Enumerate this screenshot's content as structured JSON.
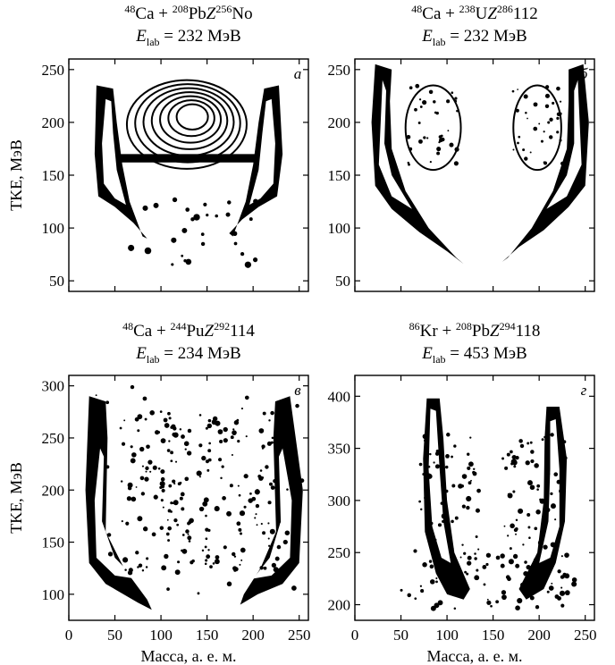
{
  "figure": {
    "ylabel": "TKE, МэВ",
    "xlabel": "Масса, а. е. м."
  },
  "chart_data": [
    {
      "type": "heatmap",
      "panel_label": "а",
      "title_parts": [
        {
          "t": "48",
          "s": "sup"
        },
        {
          "t": "Ca + ",
          "s": ""
        },
        {
          "t": "208",
          "s": "sup"
        },
        {
          "t": "Pb",
          "s": ""
        },
        {
          "t": "Z",
          "s": "it"
        },
        {
          "t": "256",
          "s": "sup"
        },
        {
          "t": "No",
          "s": ""
        }
      ],
      "energy": "232 МэВ",
      "ylim": [
        40,
        260
      ],
      "yticks": [
        50,
        100,
        150,
        200,
        250
      ],
      "xlim": [
        0,
        260
      ],
      "xticks": [
        0,
        50,
        100,
        150,
        200,
        250
      ],
      "show_xticklabels": false,
      "show_ylabel": true,
      "show_xlabel": false,
      "regions": [
        {
          "kind": "band",
          "x_range": [
            30,
            85
          ],
          "tke_range": [
            100,
            235
          ]
        },
        {
          "kind": "band",
          "x_range": [
            175,
            230
          ],
          "tke_range": [
            100,
            235
          ]
        },
        {
          "kind": "contour",
          "x_range": [
            70,
            195
          ],
          "tke_range": [
            160,
            240
          ]
        }
      ]
    },
    {
      "type": "heatmap",
      "panel_label": "б",
      "title_parts": [
        {
          "t": "48",
          "s": "sup"
        },
        {
          "t": "Ca + ",
          "s": ""
        },
        {
          "t": "238",
          "s": "sup"
        },
        {
          "t": "U",
          "s": ""
        },
        {
          "t": "Z",
          "s": "it"
        },
        {
          "t": "286",
          "s": "sup"
        },
        {
          "t": "112",
          "s": ""
        }
      ],
      "energy": "232 МэВ",
      "ylim": [
        40,
        260
      ],
      "yticks": [
        50,
        100,
        150,
        200,
        250
      ],
      "xlim": [
        0,
        260
      ],
      "xticks": [
        0,
        50,
        100,
        150,
        200,
        250
      ],
      "show_xticklabels": false,
      "show_ylabel": false,
      "show_xlabel": false,
      "regions": [
        {
          "kind": "band",
          "x_range": [
            25,
            110
          ],
          "tke_range": [
            65,
            250
          ]
        },
        {
          "kind": "band",
          "x_range": [
            165,
            250
          ],
          "tke_range": [
            65,
            250
          ]
        },
        {
          "kind": "contour",
          "x_range": [
            55,
            120
          ],
          "tke_range": [
            150,
            235
          ]
        },
        {
          "kind": "contour",
          "x_range": [
            170,
            225
          ],
          "tke_range": [
            150,
            235
          ]
        }
      ]
    },
    {
      "type": "heatmap",
      "panel_label": "в",
      "title_parts": [
        {
          "t": "48",
          "s": "sup"
        },
        {
          "t": "Ca + ",
          "s": ""
        },
        {
          "t": "244",
          "s": "sup"
        },
        {
          "t": "Pu",
          "s": ""
        },
        {
          "t": "Z",
          "s": "it"
        },
        {
          "t": "292",
          "s": "sup"
        },
        {
          "t": "114",
          "s": ""
        }
      ],
      "energy": "234 МэВ",
      "ylim": [
        75,
        310
      ],
      "yticks": [
        100,
        150,
        200,
        250,
        300
      ],
      "xlim": [
        0,
        260
      ],
      "xticks": [
        0,
        50,
        100,
        150,
        200,
        250
      ],
      "show_xticklabels": true,
      "show_ylabel": true,
      "show_xlabel": true,
      "regions": [
        {
          "kind": "band",
          "x_range": [
            20,
            90
          ],
          "tke_range": [
            85,
            290
          ]
        },
        {
          "kind": "band",
          "x_range": [
            205,
            255
          ],
          "tke_range": [
            85,
            290
          ]
        },
        {
          "kind": "scatter",
          "x_range": [
            60,
            235
          ],
          "tke_range": [
            110,
            290
          ]
        }
      ]
    },
    {
      "type": "heatmap",
      "panel_label": "г",
      "title_parts": [
        {
          "t": "86",
          "s": "sup"
        },
        {
          "t": "Kr + ",
          "s": ""
        },
        {
          "t": "208",
          "s": "sup"
        },
        {
          "t": "Pb",
          "s": ""
        },
        {
          "t": "Z",
          "s": "it"
        },
        {
          "t": "294",
          "s": "sup"
        },
        {
          "t": "118",
          "s": ""
        }
      ],
      "energy": "453 МэВ",
      "ylim": [
        185,
        420
      ],
      "yticks": [
        200,
        250,
        300,
        350,
        400
      ],
      "xlim": [
        0,
        260
      ],
      "xticks": [
        0,
        50,
        100,
        150,
        200,
        250
      ],
      "show_xticklabels": true,
      "show_ylabel": false,
      "show_xlabel": true,
      "regions": [
        {
          "kind": "band",
          "x_range": [
            60,
            125
          ],
          "tke_range": [
            195,
            395
          ]
        },
        {
          "kind": "band",
          "x_range": [
            170,
            235
          ],
          "tke_range": [
            195,
            395
          ]
        },
        {
          "kind": "scatter",
          "x_range": [
            50,
            240
          ],
          "tke_range": [
            190,
            390
          ]
        }
      ]
    }
  ]
}
